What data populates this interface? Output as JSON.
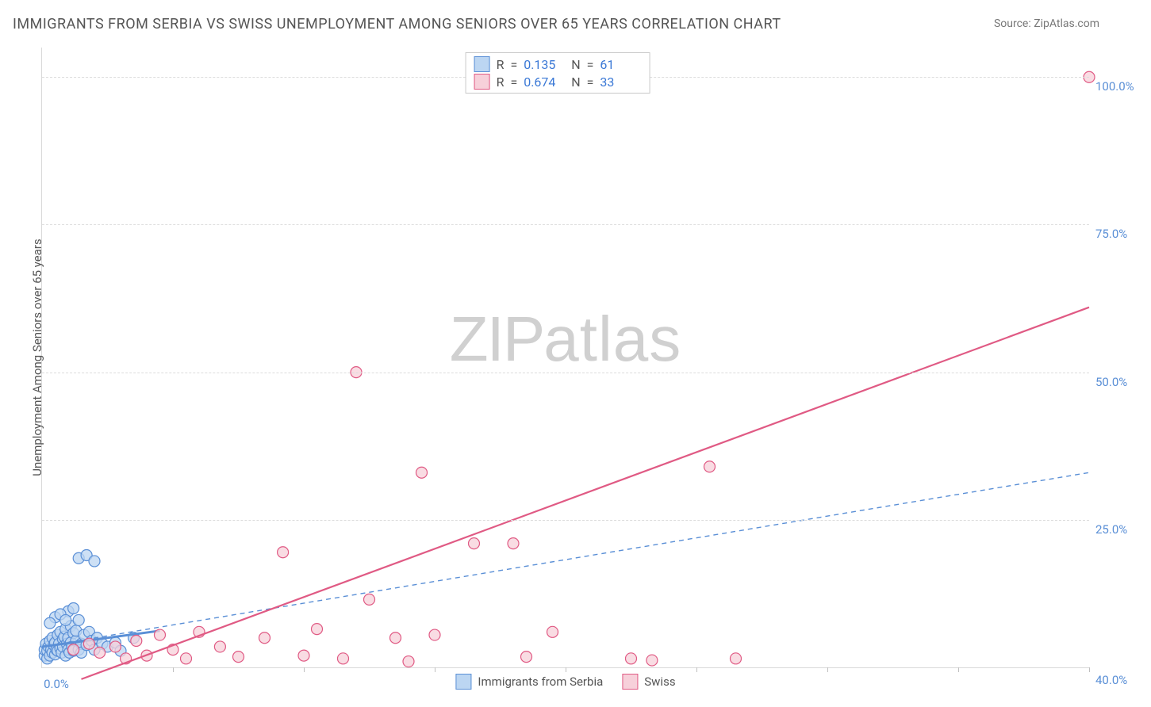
{
  "title": "IMMIGRANTS FROM SERBIA VS SWISS UNEMPLOYMENT AMONG SENIORS OVER 65 YEARS CORRELATION CHART",
  "source_label": "Source:",
  "source_value": "ZipAtlas.com",
  "ylabel": "Unemployment Among Seniors over 65 years",
  "watermark_a": "ZIP",
  "watermark_b": "atlas",
  "chart": {
    "type": "scatter",
    "xlim": [
      0,
      40
    ],
    "ylim": [
      0,
      105
    ],
    "xticks_bottom": [
      0
    ],
    "xticks_bottom_labels": [
      "0.0%"
    ],
    "xtick_right_label": "40.0%",
    "xtick_marks": [
      5,
      10,
      15,
      20,
      25,
      30,
      35,
      40
    ],
    "yticks": [
      25,
      50,
      75,
      100
    ],
    "ytick_labels": [
      "25.0%",
      "50.0%",
      "75.0%",
      "100.0%"
    ],
    "grid_color": "#dcdcdc",
    "background_color": "#ffffff",
    "axis_color": "#d9d9d9",
    "tick_label_color": "#5a8fd6",
    "marker_radius": 7,
    "series": [
      {
        "name": "Immigrants from Serbia",
        "color_fill": "#bcd6f2",
        "color_stroke": "#5a8fd6",
        "R": "0.135",
        "N": "61",
        "trend": {
          "x1": 0.0,
          "y1": 3.5,
          "x2": 40.0,
          "y2": 33.0,
          "dash": "6,5",
          "width": 1.4,
          "color": "#5a8fd6",
          "short_x2": 4.5,
          "short_y2": 6.2,
          "short_width": 3.0
        },
        "points": [
          [
            0.1,
            2.0
          ],
          [
            0.1,
            3.0
          ],
          [
            0.15,
            4.0
          ],
          [
            0.2,
            1.5
          ],
          [
            0.2,
            2.8
          ],
          [
            0.25,
            3.5
          ],
          [
            0.3,
            2.0
          ],
          [
            0.3,
            4.5
          ],
          [
            0.35,
            3.0
          ],
          [
            0.4,
            2.5
          ],
          [
            0.4,
            5.0
          ],
          [
            0.45,
            3.8
          ],
          [
            0.5,
            2.2
          ],
          [
            0.5,
            4.2
          ],
          [
            0.55,
            3.0
          ],
          [
            0.6,
            5.5
          ],
          [
            0.6,
            2.8
          ],
          [
            0.65,
            4.0
          ],
          [
            0.7,
            3.2
          ],
          [
            0.7,
            6.0
          ],
          [
            0.75,
            2.5
          ],
          [
            0.8,
            4.8
          ],
          [
            0.8,
            3.5
          ],
          [
            0.85,
            5.2
          ],
          [
            0.9,
            2.0
          ],
          [
            0.9,
            6.5
          ],
          [
            0.95,
            4.0
          ],
          [
            1.0,
            3.0
          ],
          [
            1.0,
            5.0
          ],
          [
            1.05,
            2.5
          ],
          [
            1.1,
            7.0
          ],
          [
            1.1,
            4.2
          ],
          [
            1.15,
            3.5
          ],
          [
            1.2,
            5.8
          ],
          [
            1.2,
            2.8
          ],
          [
            1.3,
            4.5
          ],
          [
            1.3,
            6.2
          ],
          [
            1.4,
            3.0
          ],
          [
            1.4,
            8.0
          ],
          [
            1.5,
            4.0
          ],
          [
            1.5,
            2.5
          ],
          [
            1.6,
            5.5
          ],
          [
            1.7,
            3.8
          ],
          [
            1.8,
            6.0
          ],
          [
            1.9,
            4.5
          ],
          [
            2.0,
            3.0
          ],
          [
            2.1,
            5.0
          ],
          [
            2.3,
            4.0
          ],
          [
            2.5,
            3.5
          ],
          [
            2.8,
            4.2
          ],
          [
            3.0,
            2.8
          ],
          [
            1.0,
            9.5
          ],
          [
            1.2,
            10.0
          ],
          [
            1.4,
            18.5
          ],
          [
            1.7,
            19.0
          ],
          [
            2.0,
            18.0
          ],
          [
            0.5,
            8.5
          ],
          [
            0.7,
            9.0
          ],
          [
            0.3,
            7.5
          ],
          [
            0.9,
            8.0
          ],
          [
            3.5,
            5.0
          ]
        ]
      },
      {
        "name": "Swiss",
        "color_fill": "#f7d0da",
        "color_stroke": "#e05a84",
        "R": "0.674",
        "N": "33",
        "trend": {
          "x1": 1.5,
          "y1": -2.0,
          "x2": 40.0,
          "y2": 61.0,
          "dash": "none",
          "width": 2.2,
          "color": "#e05a84"
        },
        "points": [
          [
            1.2,
            3.0
          ],
          [
            1.8,
            4.0
          ],
          [
            2.2,
            2.5
          ],
          [
            2.8,
            3.5
          ],
          [
            3.2,
            1.5
          ],
          [
            3.6,
            4.5
          ],
          [
            4.0,
            2.0
          ],
          [
            4.5,
            5.5
          ],
          [
            5.0,
            3.0
          ],
          [
            5.5,
            1.5
          ],
          [
            6.0,
            6.0
          ],
          [
            6.8,
            3.5
          ],
          [
            7.5,
            1.8
          ],
          [
            8.5,
            5.0
          ],
          [
            9.2,
            19.5
          ],
          [
            10.0,
            2.0
          ],
          [
            10.5,
            6.5
          ],
          [
            11.5,
            1.5
          ],
          [
            12.5,
            11.5
          ],
          [
            13.5,
            5.0
          ],
          [
            14.0,
            1.0
          ],
          [
            14.5,
            33.0
          ],
          [
            15.0,
            5.5
          ],
          [
            16.5,
            21.0
          ],
          [
            18.0,
            21.0
          ],
          [
            18.5,
            1.8
          ],
          [
            19.5,
            6.0
          ],
          [
            12.0,
            50.0
          ],
          [
            22.5,
            1.5
          ],
          [
            23.3,
            1.2
          ],
          [
            25.5,
            34.0
          ],
          [
            26.5,
            1.5
          ],
          [
            40.0,
            100.0
          ]
        ]
      }
    ]
  },
  "stats_labels": {
    "R": "R",
    "eq": "=",
    "N": "N"
  },
  "legend_items": [
    {
      "label": "Immigrants from Serbia",
      "fill": "#bcd6f2",
      "stroke": "#5a8fd6"
    },
    {
      "label": "Swiss",
      "fill": "#f7d0da",
      "stroke": "#e05a84"
    }
  ]
}
